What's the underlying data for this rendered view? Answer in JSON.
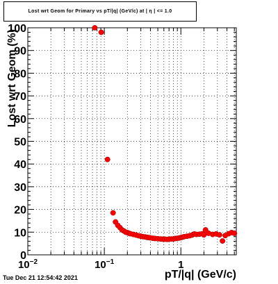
{
  "title": "Lost wrt Geom for Primary vs pT/|q| (GeV/c) at | η | <= 1.0",
  "timestamp": "Tue Dec 21 12:54:42 2021",
  "colors": {
    "marker": "#ff0000",
    "marker_edge": "#b00000",
    "grid": "#000000"
  },
  "chart_data": {
    "type": "scatter",
    "xlabel": "pT/|q| (GeV/c)",
    "ylabel": "Lost wrt Geom (%)",
    "x_scale": "log",
    "xlim": [
      0.01,
      5.3
    ],
    "ylim": [
      0,
      100
    ],
    "grid": true,
    "x_ticks": [
      {
        "value": 0.01,
        "base": "10",
        "exp": "−2"
      },
      {
        "value": 0.1,
        "base": "10",
        "exp": "−1"
      },
      {
        "value": 1,
        "base": "1",
        "exp": ""
      }
    ],
    "y_ticks": [
      "0",
      "10",
      "20",
      "30",
      "40",
      "50",
      "60",
      "70",
      "80",
      "90",
      "100"
    ],
    "points": [
      {
        "x": 0.075,
        "y": 100
      },
      {
        "x": 0.091,
        "y": 98
      },
      {
        "x": 0.11,
        "y": 42
      },
      {
        "x": 0.13,
        "y": 18.5
      },
      {
        "x": 0.14,
        "y": 14.5
      },
      {
        "x": 0.15,
        "y": 13
      },
      {
        "x": 0.16,
        "y": 12
      },
      {
        "x": 0.17,
        "y": 11
      },
      {
        "x": 0.18,
        "y": 10.5
      },
      {
        "x": 0.19,
        "y": 10
      },
      {
        "x": 0.2,
        "y": 9.8
      },
      {
        "x": 0.21,
        "y": 9.5
      },
      {
        "x": 0.22,
        "y": 9.3
      },
      {
        "x": 0.24,
        "y": 9
      },
      {
        "x": 0.26,
        "y": 8.7
      },
      {
        "x": 0.28,
        "y": 8.4
      },
      {
        "x": 0.3,
        "y": 8.2
      },
      {
        "x": 0.32,
        "y": 8
      },
      {
        "x": 0.34,
        "y": 7.9
      },
      {
        "x": 0.36,
        "y": 7.7
      },
      {
        "x": 0.38,
        "y": 7.6
      },
      {
        "x": 0.4,
        "y": 7.5
      },
      {
        "x": 0.43,
        "y": 7.3
      },
      {
        "x": 0.46,
        "y": 7.2
      },
      {
        "x": 0.5,
        "y": 7.1
      },
      {
        "x": 0.54,
        "y": 7
      },
      {
        "x": 0.58,
        "y": 6.9
      },
      {
        "x": 0.62,
        "y": 6.9
      },
      {
        "x": 0.66,
        "y": 6.8
      },
      {
        "x": 0.7,
        "y": 6.9
      },
      {
        "x": 0.75,
        "y": 7
      },
      {
        "x": 0.8,
        "y": 7
      },
      {
        "x": 0.85,
        "y": 7.2
      },
      {
        "x": 0.9,
        "y": 7.3
      },
      {
        "x": 0.95,
        "y": 7.4
      },
      {
        "x": 1.0,
        "y": 7.6
      },
      {
        "x": 1.05,
        "y": 7.8
      },
      {
        "x": 1.1,
        "y": 8
      },
      {
        "x": 1.2,
        "y": 8.2
      },
      {
        "x": 1.3,
        "y": 8.4
      },
      {
        "x": 1.4,
        "y": 8.7
      },
      {
        "x": 1.5,
        "y": 9.2
      },
      {
        "x": 1.6,
        "y": 9
      },
      {
        "x": 1.75,
        "y": 9.1
      },
      {
        "x": 1.9,
        "y": 9.3
      },
      {
        "x": 2.0,
        "y": 8.8
      },
      {
        "x": 2.1,
        "y": 11
      },
      {
        "x": 2.3,
        "y": 9.5
      },
      {
        "x": 2.6,
        "y": 9
      },
      {
        "x": 2.9,
        "y": 9.2
      },
      {
        "x": 3.2,
        "y": 8.8
      },
      {
        "x": 3.5,
        "y": 6.1
      },
      {
        "x": 3.8,
        "y": 8.5
      },
      {
        "x": 4.2,
        "y": 9.3
      },
      {
        "x": 4.6,
        "y": 9.8
      },
      {
        "x": 5.0,
        "y": 9.5
      }
    ]
  }
}
